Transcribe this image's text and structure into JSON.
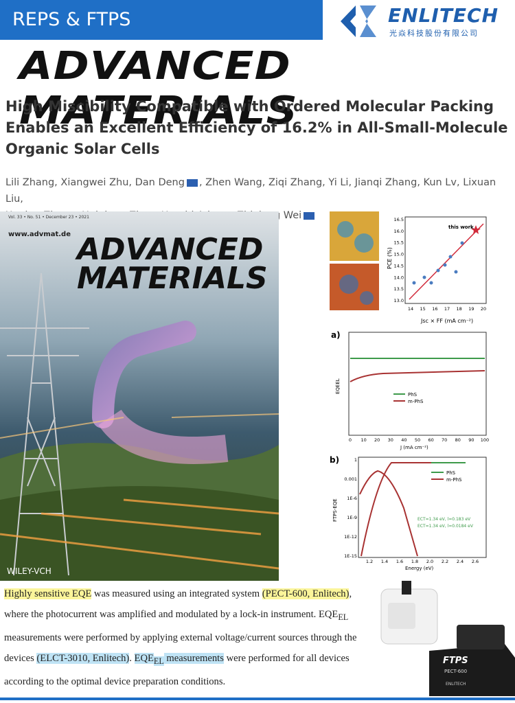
{
  "header": {
    "banner": "REPS & FTPS",
    "logo": "ENLITECH",
    "logo_sub": "光焱科技股份有限公司"
  },
  "journal": "ADVANCED MATERIALS",
  "article": {
    "title_lines": [
      "High Miscibility Compatible with Ordered Molecular Packing",
      "Enables an Excellent Efficiency of 16.2% in All-Small-Molecule",
      "Organic Solar Cells"
    ],
    "authors_lines": [
      [
        {
          "name": "Lili Zhang,"
        },
        {
          "name": "Xiangwei Zhu,"
        },
        {
          "name": "Dan Deng",
          "mail": true
        },
        {
          "name": ", Zhen Wang,"
        },
        {
          "name": "Ziqi Zhang,"
        },
        {
          "name": "Yi Li,"
        },
        {
          "name": "Jianqi Zhang,"
        },
        {
          "name": "Kun Lv,"
        },
        {
          "name": "Lixuan Liu,"
        }
      ],
      [
        {
          "name": "Xuning Zhang,"
        },
        {
          "name": "Huiqiong Zhou,"
        },
        {
          "name": "Harald Ade",
          "mail": true
        },
        {
          "name": ", Zhixiang Wei",
          "mail": true
        }
      ]
    ]
  },
  "cover": {
    "issue": "Vol. 33 • No. 51 • December 23 • 2021",
    "url": "www.advmat.de",
    "line1": "ADVANCED",
    "line2": "MATERIALS",
    "publisher": "WILEY-VCH"
  },
  "figures": {
    "scatter": {
      "y_label": "PCE (%)",
      "x_label": "Jsc × FF (mA cm⁻²)",
      "annotation": "this work",
      "yticks": [
        "16.5",
        "16.0",
        "15.5",
        "15.0",
        "14.5",
        "14.0",
        "13.5",
        "13.0"
      ],
      "xticks": [
        "14",
        "15",
        "16",
        "17",
        "18",
        "19",
        "20"
      ]
    },
    "panel_a": {
      "label": "a)",
      "y_label": "EQEEL",
      "x_label": "J (mA cm⁻²)",
      "legend": [
        "PhS",
        "m-PhS"
      ],
      "xticks": [
        "0",
        "10",
        "20",
        "30",
        "40",
        "50",
        "60",
        "70",
        "80",
        "90",
        "100"
      ]
    },
    "panel_b": {
      "label": "b)",
      "y_label": "FTPS-EQE",
      "x_label": "Energy (eV)",
      "legend": [
        "PhS",
        "m-PhS"
      ],
      "yticks": [
        "1",
        "0.001",
        "1E-6",
        "1E-9",
        "1E-12",
        "1E-15"
      ],
      "xticks": [
        "1.2",
        "1.4",
        "1.6",
        "1.8",
        "2.0",
        "2.2",
        "2.4",
        "2.6"
      ],
      "notes": [
        "ECT=1.34 eV, l=0.183 eV",
        "ECT=1.34 eV, l=0.0184 eV"
      ]
    }
  },
  "paragraph": [
    "Highly sensitive EQE",
    " was measured using an integrated system ",
    "(PECT-600, Enlitech)",
    ", where the photocurrent was amplified and modulated by a lock-in instrument. EQE",
    "EL",
    " measurements were performed by applying external voltage/current sources through the devices ",
    "(ELCT-3010, Enlitech)",
    ". ",
    "EQE",
    "EL",
    " measurements",
    " were performed for all devices according to the optimal device preparation conditions."
  ],
  "instruments": {
    "brand": "FTPS",
    "model": "PECT-600",
    "logo": "ENLITECH"
  }
}
